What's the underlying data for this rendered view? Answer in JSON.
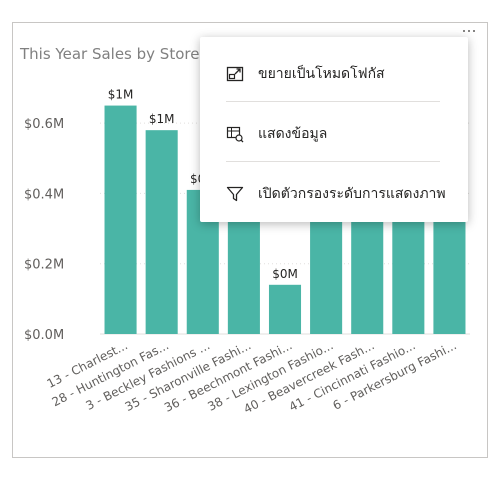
{
  "visual": {
    "title": "This Year Sales by Store"
  },
  "context_menu": {
    "items": [
      {
        "label": "ขยายเป็นโหมดโฟกัส",
        "icon": "focus-mode-icon"
      },
      {
        "label": "แสดงข้อมูล",
        "icon": "show-data-icon"
      },
      {
        "label": "เปิดตัวกรองระดับการแสดงภาพ",
        "icon": "filter-icon"
      }
    ]
  },
  "chart_data": {
    "type": "bar",
    "title": "This Year Sales by Store",
    "categories": [
      "13 - Charlest...",
      "28 - Huntington Fas...",
      "3 - Beckley Fashions ...",
      "35 - Sharonville Fashi...",
      "36 - Beechmont Fashi...",
      "38 - Lexington Fashio...",
      "40 - Beavercreek Fash...",
      "41 - Cincinnati Fashio...",
      "6 - Parkersburg Fashi..."
    ],
    "values": [
      0.65,
      0.58,
      0.41,
      0.4,
      0.14,
      0.4,
      0.4,
      0.4,
      0.4
    ],
    "data_labels": [
      "$1M",
      "$1M",
      "$0M",
      "",
      "$0M",
      "",
      "",
      "",
      ""
    ],
    "y_ticks": [
      {
        "value": 0,
        "label": "$0.0M"
      },
      {
        "value": 0.2,
        "label": "$0.2M"
      },
      {
        "value": 0.4,
        "label": "$0.4M"
      },
      {
        "value": 0.6,
        "label": "$0.6M"
      }
    ],
    "ylim": [
      0,
      0.7
    ],
    "grid": true,
    "bar_color": "#4ab5a6"
  }
}
